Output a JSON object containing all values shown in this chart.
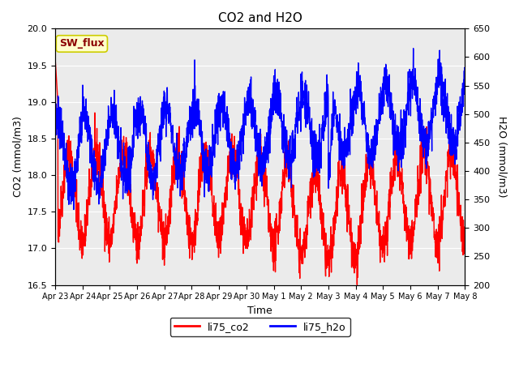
{
  "title": "CO2 and H2O",
  "xlabel": "Time",
  "ylabel_left": "CO2 (mmol/m3)",
  "ylabel_right": "H2O (mmol/m3)",
  "ylim_left": [
    16.5,
    20.0
  ],
  "ylim_right": [
    200,
    650
  ],
  "co2_color": "#FF0000",
  "h2o_color": "#0000FF",
  "plot_bg": "#EBEBEB",
  "annotation_text": "SW_flux",
  "annotation_bg": "#FFFFCC",
  "annotation_border": "#CCCC00",
  "legend_co2": "li75_co2",
  "legend_h2o": "li75_h2o",
  "x_tick_labels": [
    "Apr 23",
    "Apr 24",
    "Apr 25",
    "Apr 26",
    "Apr 27",
    "Apr 28",
    "Apr 29",
    "Apr 30",
    "May 1",
    "May 2",
    "May 3",
    "May 4",
    "May 5",
    "May 6",
    "May 7",
    "May 8"
  ],
  "yticks_left": [
    16.5,
    17.0,
    17.5,
    18.0,
    18.5,
    19.0,
    19.5,
    20.0
  ],
  "yticks_right": [
    200,
    250,
    300,
    350,
    400,
    450,
    500,
    550,
    600,
    650
  ],
  "linewidth": 1.0
}
